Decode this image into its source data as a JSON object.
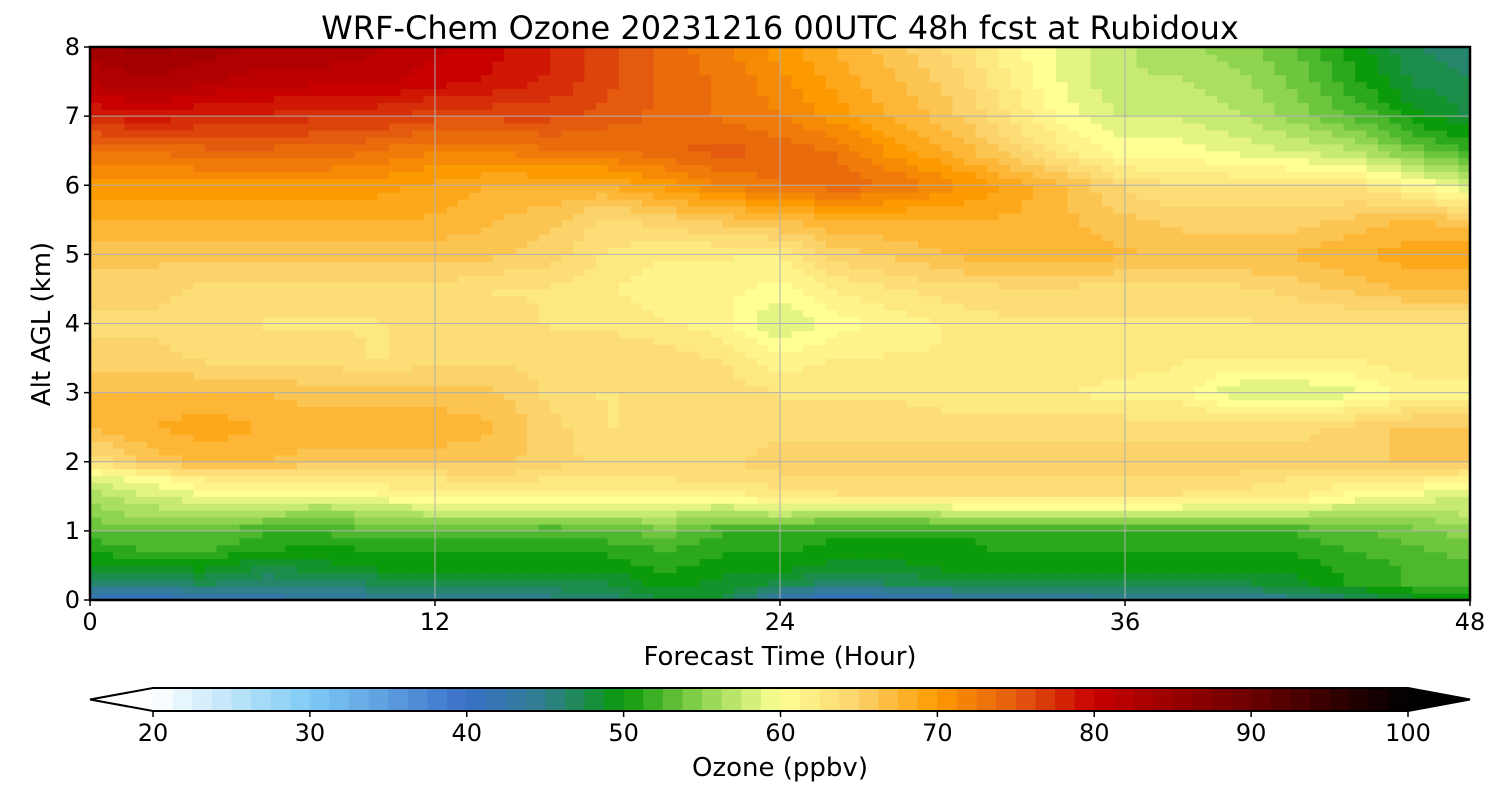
{
  "chart_data": {
    "type": "heatmap",
    "title": "WRF-Chem Ozone  20231216 00UTC 48h fcst at Rubidoux",
    "xlabel": "Forecast Time (Hour)",
    "ylabel": "Alt AGL (km)",
    "xlim": [
      0,
      48
    ],
    "ylim": [
      0,
      8
    ],
    "x_ticks": [
      0,
      12,
      24,
      36,
      48
    ],
    "y_ticks": [
      0,
      1,
      2,
      3,
      4,
      5,
      6,
      7,
      8
    ],
    "grid": true,
    "colorbar": {
      "label": "Ozone  (ppbv)",
      "range": [
        20,
        100
      ],
      "ticks": [
        20,
        30,
        40,
        50,
        60,
        70,
        80,
        90,
        100
      ],
      "extend": "both",
      "extend_low_color": "#ffffff",
      "extend_high_color": "#000000",
      "colors": [
        {
          "value": 20,
          "color": "#ffffff"
        },
        {
          "value": 30,
          "color": "#7ecbf5"
        },
        {
          "value": 40,
          "color": "#3a6fc8"
        },
        {
          "value": 45,
          "color": "#2f7f8c"
        },
        {
          "value": 50,
          "color": "#0a9a0a"
        },
        {
          "value": 55,
          "color": "#8fd44f"
        },
        {
          "value": 60,
          "color": "#ffff96"
        },
        {
          "value": 65,
          "color": "#fcd26a"
        },
        {
          "value": 70,
          "color": "#fd9a00"
        },
        {
          "value": 75,
          "color": "#e45b10"
        },
        {
          "value": 80,
          "color": "#c80000"
        },
        {
          "value": 90,
          "color": "#6b0000"
        },
        {
          "value": 100,
          "color": "#000000"
        }
      ]
    },
    "field": {
      "x": [
        0,
        2,
        4,
        6,
        8,
        10,
        12,
        14,
        16,
        18,
        20,
        22,
        24,
        26,
        28,
        30,
        32,
        34,
        36,
        38,
        40,
        42,
        44,
        46,
        48
      ],
      "y": [
        0,
        0.25,
        0.5,
        0.75,
        1,
        1.25,
        1.5,
        1.75,
        2,
        2.5,
        3,
        3.5,
        4,
        4.5,
        5,
        5.5,
        6,
        6.5,
        7,
        7.5,
        8
      ],
      "values": [
        [
          41,
          40,
          42,
          42,
          43,
          44,
          44,
          44,
          45,
          46,
          48,
          48,
          42,
          40,
          41,
          42,
          43,
          43,
          44,
          44,
          44,
          45,
          46,
          49,
          50
        ],
        [
          46,
          46,
          47,
          46,
          46,
          47,
          48,
          48,
          48,
          48,
          50,
          49,
          48,
          46,
          47,
          48,
          48,
          48,
          48,
          48,
          48,
          49,
          51,
          52,
          53
        ],
        [
          49,
          50,
          50,
          48,
          49,
          50,
          50,
          50,
          50,
          50,
          51,
          50,
          50,
          49,
          49,
          50,
          50,
          50,
          50,
          50,
          50,
          50,
          51,
          52,
          53
        ],
        [
          51,
          52,
          52,
          51,
          50,
          51,
          51,
          51,
          51,
          51,
          52,
          51,
          51,
          50,
          50,
          50,
          51,
          51,
          51,
          51,
          51,
          51,
          52,
          53,
          54
        ],
        [
          53,
          53,
          53,
          52,
          52,
          53,
          53,
          53,
          52,
          53,
          54,
          52,
          52,
          51,
          51,
          51,
          51,
          52,
          52,
          52,
          52,
          52,
          53,
          54,
          55
        ],
        [
          55,
          56,
          56,
          56,
          55,
          56,
          57,
          57,
          57,
          57,
          57,
          56,
          57,
          56,
          56,
          57,
          57,
          57,
          57,
          57,
          57,
          57,
          56,
          56,
          57
        ],
        [
          56,
          58,
          59,
          60,
          59,
          60,
          61,
          61,
          61,
          61,
          61,
          61,
          62,
          63,
          63,
          63,
          63,
          63,
          63,
          63,
          62,
          62,
          60,
          59,
          58
        ],
        [
          58,
          60,
          62,
          62,
          63,
          63,
          63,
          64,
          63,
          63,
          63,
          64,
          64,
          64,
          64,
          64,
          64,
          64,
          64,
          64,
          64,
          63,
          62,
          62,
          61
        ],
        [
          63,
          66,
          67,
          67,
          66,
          66,
          66,
          66,
          65,
          64,
          64,
          64,
          65,
          65,
          65,
          65,
          65,
          65,
          65,
          65,
          65,
          65,
          65,
          66,
          66
        ],
        [
          67,
          68,
          69,
          68,
          68,
          68,
          68,
          67,
          65,
          63,
          64,
          64,
          64,
          64,
          64,
          64,
          64,
          64,
          64,
          64,
          64,
          64,
          65,
          66,
          66
        ],
        [
          67,
          67,
          67,
          67,
          66,
          66,
          66,
          66,
          64,
          63,
          64,
          64,
          63,
          63,
          63,
          62,
          62,
          62,
          61,
          61,
          58,
          58,
          59,
          61,
          61
        ],
        [
          65,
          65,
          64,
          64,
          64,
          63,
          64,
          64,
          64,
          64,
          64,
          63,
          61,
          62,
          62,
          62,
          63,
          63,
          63,
          62,
          62,
          62,
          62,
          63,
          63
        ],
        [
          64,
          64,
          64,
          63,
          63,
          63,
          64,
          64,
          63,
          63,
          62,
          61,
          58,
          60,
          61,
          62,
          63,
          63,
          63,
          63,
          63,
          63,
          63,
          63,
          63
        ],
        [
          65,
          65,
          64,
          64,
          64,
          64,
          64,
          63,
          63,
          62,
          61,
          61,
          60,
          62,
          63,
          64,
          64,
          64,
          64,
          64,
          64,
          65,
          66,
          67,
          67
        ],
        [
          66,
          66,
          66,
          66,
          66,
          66,
          66,
          66,
          65,
          63,
          62,
          62,
          62,
          65,
          66,
          67,
          68,
          68,
          67,
          67,
          67,
          67,
          68,
          69,
          69
        ],
        [
          68,
          68,
          68,
          68,
          68,
          68,
          68,
          67,
          66,
          64,
          65,
          66,
          67,
          68,
          68,
          68,
          68,
          67,
          66,
          65,
          65,
          65,
          66,
          67,
          66
        ],
        [
          70,
          70,
          70,
          70,
          70,
          70,
          69,
          68,
          68,
          68,
          70,
          72,
          73,
          74,
          73,
          71,
          69,
          67,
          64,
          63,
          63,
          63,
          63,
          61,
          58
        ],
        [
          73,
          73,
          74,
          74,
          74,
          73,
          72,
          72,
          73,
          73,
          74,
          75,
          74,
          73,
          70,
          68,
          65,
          62,
          60,
          60,
          59,
          58,
          57,
          54,
          52
        ],
        [
          78,
          79,
          78,
          78,
          77,
          77,
          76,
          76,
          76,
          75,
          74,
          73,
          72,
          70,
          68,
          66,
          63,
          60,
          58,
          58,
          57,
          55,
          53,
          50,
          48
        ],
        [
          82,
          83,
          82,
          81,
          81,
          81,
          80,
          79,
          78,
          76,
          74,
          73,
          71,
          69,
          67,
          65,
          62,
          59,
          57,
          57,
          56,
          54,
          51,
          48,
          47
        ],
        [
          84,
          85,
          84,
          83,
          83,
          82,
          81,
          80,
          78,
          76,
          74,
          72,
          70,
          68,
          66,
          64,
          61,
          59,
          57,
          56,
          55,
          53,
          50,
          47,
          46
        ]
      ]
    }
  }
}
